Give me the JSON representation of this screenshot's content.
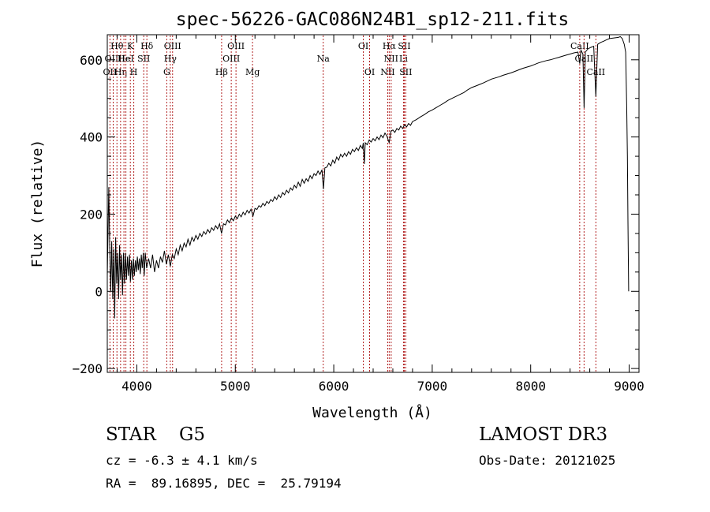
{
  "chart_data": {
    "type": "line",
    "title": "spec-56226-GAC086N24B1_sp12-211.fits",
    "xlabel": "Wavelength (Å)",
    "ylabel": "Flux (relative)",
    "xlim": [
      3700,
      9100
    ],
    "ylim": [
      -210,
      665
    ],
    "xticks": [
      4000,
      5000,
      6000,
      7000,
      8000,
      9000
    ],
    "yticks": [
      -200,
      0,
      200,
      400,
      600
    ],
    "grid": false,
    "line_color": "#000000",
    "marker_color": "#b22222",
    "series": [
      {
        "name": "flux",
        "points": [
          [
            3700,
            40
          ],
          [
            3715,
            270
          ],
          [
            3725,
            110
          ],
          [
            3735,
            0
          ],
          [
            3745,
            130
          ],
          [
            3755,
            -20
          ],
          [
            3765,
            110
          ],
          [
            3775,
            -70
          ],
          [
            3785,
            140
          ],
          [
            3795,
            20
          ],
          [
            3805,
            100
          ],
          [
            3815,
            -20
          ],
          [
            3825,
            120
          ],
          [
            3835,
            30
          ],
          [
            3845,
            95
          ],
          [
            3855,
            -10
          ],
          [
            3865,
            100
          ],
          [
            3875,
            20
          ],
          [
            3885,
            100
          ],
          [
            3895,
            30
          ],
          [
            3905,
            90
          ],
          [
            3915,
            40
          ],
          [
            3925,
            95
          ],
          [
            3935,
            25
          ],
          [
            3945,
            80
          ],
          [
            3955,
            30
          ],
          [
            3965,
            85
          ],
          [
            3975,
            40
          ],
          [
            3985,
            80
          ],
          [
            3995,
            50
          ],
          [
            4005,
            90
          ],
          [
            4015,
            55
          ],
          [
            4025,
            85
          ],
          [
            4035,
            45
          ],
          [
            4045,
            95
          ],
          [
            4055,
            60
          ],
          [
            4065,
            100
          ],
          [
            4075,
            40
          ],
          [
            4085,
            100
          ],
          [
            4100,
            60
          ],
          [
            4120,
            85
          ],
          [
            4140,
            60
          ],
          [
            4160,
            95
          ],
          [
            4180,
            50
          ],
          [
            4200,
            80
          ],
          [
            4220,
            60
          ],
          [
            4240,
            90
          ],
          [
            4260,
            75
          ],
          [
            4280,
            105
          ],
          [
            4300,
            70
          ],
          [
            4320,
            95
          ],
          [
            4340,
            65
          ],
          [
            4360,
            95
          ],
          [
            4380,
            85
          ],
          [
            4400,
            110
          ],
          [
            4420,
            95
          ],
          [
            4440,
            120
          ],
          [
            4460,
            105
          ],
          [
            4480,
            125
          ],
          [
            4500,
            115
          ],
          [
            4520,
            135
          ],
          [
            4540,
            120
          ],
          [
            4560,
            140
          ],
          [
            4580,
            130
          ],
          [
            4600,
            145
          ],
          [
            4620,
            135
          ],
          [
            4640,
            150
          ],
          [
            4660,
            142
          ],
          [
            4680,
            155
          ],
          [
            4700,
            148
          ],
          [
            4720,
            160
          ],
          [
            4740,
            152
          ],
          [
            4760,
            165
          ],
          [
            4780,
            158
          ],
          [
            4800,
            170
          ],
          [
            4820,
            162
          ],
          [
            4840,
            175
          ],
          [
            4860,
            150
          ],
          [
            4880,
            175
          ],
          [
            4900,
            172
          ],
          [
            4920,
            185
          ],
          [
            4940,
            178
          ],
          [
            4960,
            190
          ],
          [
            4980,
            183
          ],
          [
            5000,
            195
          ],
          [
            5020,
            188
          ],
          [
            5040,
            200
          ],
          [
            5060,
            193
          ],
          [
            5080,
            205
          ],
          [
            5100,
            198
          ],
          [
            5120,
            210
          ],
          [
            5140,
            203
          ],
          [
            5160,
            213
          ],
          [
            5180,
            195
          ],
          [
            5200,
            215
          ],
          [
            5220,
            212
          ],
          [
            5240,
            222
          ],
          [
            5260,
            218
          ],
          [
            5280,
            228
          ],
          [
            5300,
            222
          ],
          [
            5320,
            233
          ],
          [
            5340,
            228
          ],
          [
            5360,
            238
          ],
          [
            5380,
            233
          ],
          [
            5400,
            245
          ],
          [
            5420,
            238
          ],
          [
            5440,
            250
          ],
          [
            5460,
            243
          ],
          [
            5480,
            256
          ],
          [
            5500,
            250
          ],
          [
            5520,
            262
          ],
          [
            5540,
            255
          ],
          [
            5560,
            268
          ],
          [
            5580,
            262
          ],
          [
            5600,
            275
          ],
          [
            5620,
            268
          ],
          [
            5640,
            283
          ],
          [
            5660,
            272
          ],
          [
            5680,
            290
          ],
          [
            5700,
            280
          ],
          [
            5720,
            292
          ],
          [
            5740,
            285
          ],
          [
            5760,
            300
          ],
          [
            5780,
            292
          ],
          [
            5800,
            305
          ],
          [
            5820,
            300
          ],
          [
            5840,
            312
          ],
          [
            5860,
            303
          ],
          [
            5880,
            315
          ],
          [
            5895,
            265
          ],
          [
            5910,
            320
          ],
          [
            5930,
            322
          ],
          [
            5950,
            332
          ],
          [
            5970,
            325
          ],
          [
            5990,
            340
          ],
          [
            6010,
            332
          ],
          [
            6030,
            348
          ],
          [
            6050,
            340
          ],
          [
            6070,
            355
          ],
          [
            6090,
            348
          ],
          [
            6110,
            358
          ],
          [
            6130,
            350
          ],
          [
            6150,
            362
          ],
          [
            6170,
            355
          ],
          [
            6190,
            368
          ],
          [
            6210,
            362
          ],
          [
            6230,
            372
          ],
          [
            6250,
            365
          ],
          [
            6270,
            378
          ],
          [
            6290,
            370
          ],
          [
            6300,
            385
          ],
          [
            6310,
            330
          ],
          [
            6320,
            385
          ],
          [
            6340,
            380
          ],
          [
            6360,
            392
          ],
          [
            6380,
            387
          ],
          [
            6400,
            396
          ],
          [
            6420,
            390
          ],
          [
            6440,
            400
          ],
          [
            6460,
            393
          ],
          [
            6480,
            405
          ],
          [
            6500,
            398
          ],
          [
            6520,
            410
          ],
          [
            6540,
            402
          ],
          [
            6563,
            385
          ],
          [
            6580,
            415
          ],
          [
            6600,
            418
          ],
          [
            6620,
            412
          ],
          [
            6640,
            422
          ],
          [
            6660,
            418
          ],
          [
            6680,
            428
          ],
          [
            6700,
            422
          ],
          [
            6720,
            432
          ],
          [
            6740,
            426
          ],
          [
            6760,
            435
          ],
          [
            6780,
            430
          ],
          [
            6800,
            440
          ],
          [
            6840,
            445
          ],
          [
            6880,
            452
          ],
          [
            6920,
            458
          ],
          [
            6960,
            465
          ],
          [
            7000,
            470
          ],
          [
            7040,
            476
          ],
          [
            7080,
            482
          ],
          [
            7120,
            488
          ],
          [
            7160,
            495
          ],
          [
            7200,
            500
          ],
          [
            7240,
            505
          ],
          [
            7280,
            510
          ],
          [
            7320,
            515
          ],
          [
            7360,
            522
          ],
          [
            7400,
            528
          ],
          [
            7440,
            532
          ],
          [
            7480,
            536
          ],
          [
            7520,
            540
          ],
          [
            7560,
            545
          ],
          [
            7600,
            550
          ],
          [
            7640,
            553
          ],
          [
            7680,
            556
          ],
          [
            7720,
            560
          ],
          [
            7760,
            563
          ],
          [
            7800,
            566
          ],
          [
            7840,
            570
          ],
          [
            7880,
            574
          ],
          [
            7920,
            578
          ],
          [
            7960,
            581
          ],
          [
            8000,
            584
          ],
          [
            8040,
            588
          ],
          [
            8080,
            592
          ],
          [
            8120,
            595
          ],
          [
            8160,
            598
          ],
          [
            8200,
            600
          ],
          [
            8240,
            603
          ],
          [
            8280,
            606
          ],
          [
            8320,
            609
          ],
          [
            8360,
            612
          ],
          [
            8400,
            615
          ],
          [
            8440,
            618
          ],
          [
            8480,
            620
          ],
          [
            8498,
            590
          ],
          [
            8510,
            625
          ],
          [
            8530,
            615
          ],
          [
            8542,
            475
          ],
          [
            8555,
            620
          ],
          [
            8580,
            628
          ],
          [
            8610,
            632
          ],
          [
            8640,
            635
          ],
          [
            8662,
            505
          ],
          [
            8680,
            640
          ],
          [
            8710,
            645
          ],
          [
            8740,
            648
          ],
          [
            8770,
            652
          ],
          [
            8800,
            655
          ],
          [
            8830,
            656
          ],
          [
            8860,
            657
          ],
          [
            8890,
            658
          ],
          [
            8910,
            660
          ],
          [
            8930,
            655
          ],
          [
            8950,
            640
          ],
          [
            8965,
            620
          ],
          [
            8975,
            480
          ],
          [
            8982,
            350
          ],
          [
            8988,
            180
          ],
          [
            8992,
            80
          ],
          [
            8995,
            0
          ]
        ]
      }
    ],
    "markers": [
      {
        "wl": 3727,
        "row": 3,
        "label": "OII"
      },
      {
        "wl": 3760,
        "row": 2,
        "label": "OIII"
      },
      {
        "wl": 3798,
        "row": 1,
        "label": "Hθ"
      },
      {
        "wl": 3835,
        "row": 3,
        "label": "Hη"
      },
      {
        "wl": 3869,
        "row": 2,
        "label": "He"
      },
      {
        "wl": 3889,
        "row": 2,
        "label": "HeI"
      },
      {
        "wl": 3934,
        "row": 1,
        "label": "K"
      },
      {
        "wl": 3969,
        "row": 3,
        "label": "H"
      },
      {
        "wl": 4070,
        "row": 2,
        "label": "SII"
      },
      {
        "wl": 4102,
        "row": 1,
        "label": "Hδ"
      },
      {
        "wl": 4304,
        "row": 3,
        "label": "G"
      },
      {
        "wl": 4340,
        "row": 2,
        "label": "Hγ"
      },
      {
        "wl": 4363,
        "row": 1,
        "label": "OIII"
      },
      {
        "wl": 4861,
        "row": 3,
        "label": "Hβ"
      },
      {
        "wl": 4959,
        "row": 2,
        "label": "OIII"
      },
      {
        "wl": 5007,
        "row": 1,
        "label": "OIII"
      },
      {
        "wl": 5175,
        "row": 3,
        "label": "Mg"
      },
      {
        "wl": 5893,
        "row": 2,
        "label": "Na"
      },
      {
        "wl": 6300,
        "row": 1,
        "label": "OI"
      },
      {
        "wl": 6364,
        "row": 3,
        "label": "OI"
      },
      {
        "wl": 6548,
        "row": 3,
        "label": "NII"
      },
      {
        "wl": 6563,
        "row": 1,
        "label": "Hα"
      },
      {
        "wl": 6583,
        "row": 2,
        "label": "NII"
      },
      {
        "wl": 6708,
        "row": 2,
        "label": "Li"
      },
      {
        "wl": 6716,
        "row": 1,
        "label": "SII"
      },
      {
        "wl": 6731,
        "row": 3,
        "label": "SII"
      },
      {
        "wl": 8498,
        "row": 1,
        "label": "CaII"
      },
      {
        "wl": 8542,
        "row": 2,
        "label": "CaII"
      },
      {
        "wl": 8662,
        "row": 3,
        "label": "CaII"
      }
    ]
  },
  "info": {
    "object_class": "STAR    G5",
    "cz": "cz = -6.3 ± 4.1 km/s",
    "radec": "RA =  89.16895, DEC =  25.79194",
    "survey": "LAMOST DR3",
    "obs_date": "Obs-Date: 20121025"
  }
}
